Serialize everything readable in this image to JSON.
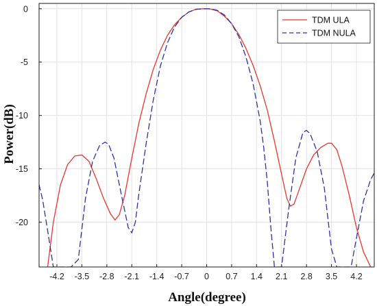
{
  "chart_data": {
    "type": "line",
    "title": "",
    "xlabel": "Angle(degree)",
    "ylabel": "Power(dB)",
    "xlim": [
      -4.7,
      4.7
    ],
    "ylim": [
      -24.2,
      0.5
    ],
    "x_ticks": [
      -4.2,
      -3.5,
      -2.8,
      -2.1,
      -1.4,
      -0.7,
      0,
      0.7,
      1.4,
      2.1,
      2.8,
      3.5,
      4.2
    ],
    "x_tick_labels": [
      "-4.2",
      "-3.5",
      "-2.8",
      "-2.1",
      "-1.4",
      "-0.7",
      "0",
      "0.7",
      "1.4",
      "2.1",
      "2.8",
      "3.5",
      "4.2"
    ],
    "y_ticks": [
      0,
      -5,
      -10,
      -15,
      -20
    ],
    "y_tick_labels": [
      "0",
      "-5",
      "-10",
      "-15",
      "-20"
    ],
    "grid": true,
    "legend_position": "top-right",
    "series": [
      {
        "name": "TDM ULA",
        "color": "#e8352e",
        "style": "solid",
        "x": [
          -4.46,
          -4.3,
          -4.1,
          -3.9,
          -3.7,
          -3.5,
          -3.3,
          -3.1,
          -2.9,
          -2.7,
          -2.57,
          -2.45,
          -2.3,
          -2.1,
          -1.9,
          -1.7,
          -1.5,
          -1.3,
          -1.1,
          -0.9,
          -0.7,
          -0.5,
          -0.3,
          -0.1,
          0.0,
          0.1,
          0.3,
          0.5,
          0.7,
          0.9,
          1.1,
          1.3,
          1.5,
          1.7,
          1.9,
          2.1,
          2.25,
          2.35,
          2.45,
          2.6,
          2.8,
          3.0,
          3.2,
          3.4,
          3.5,
          3.65,
          3.8,
          4.0,
          4.2,
          4.4,
          4.6
        ],
        "y": [
          -24.2,
          -20.0,
          -16.5,
          -14.6,
          -13.8,
          -13.7,
          -14.3,
          -15.9,
          -17.7,
          -19.2,
          -19.8,
          -19.3,
          -17.5,
          -14.0,
          -10.7,
          -8.0,
          -5.7,
          -3.9,
          -2.5,
          -1.5,
          -0.8,
          -0.3,
          -0.05,
          0.0,
          0.0,
          -0.02,
          -0.2,
          -0.7,
          -1.4,
          -2.4,
          -3.7,
          -5.3,
          -7.2,
          -9.5,
          -12.4,
          -15.5,
          -17.8,
          -18.5,
          -18.3,
          -16.9,
          -15.0,
          -13.7,
          -13.0,
          -12.6,
          -12.6,
          -13.2,
          -14.8,
          -17.5,
          -20.5,
          -22.8,
          -24.2
        ]
      },
      {
        "name": "TDM NULA",
        "color": "#2b2fa8",
        "style": "dashed",
        "x": [
          -4.7,
          -4.6,
          -4.45,
          -4.3,
          -4.2,
          -4.1,
          -4.0,
          -3.9,
          -3.8,
          -3.6,
          -3.4,
          -3.2,
          -3.0,
          -2.85,
          -2.75,
          -2.6,
          -2.4,
          -2.2,
          -2.1,
          -2.0,
          -1.9,
          -1.7,
          -1.5,
          -1.3,
          -1.1,
          -0.9,
          -0.7,
          -0.5,
          -0.3,
          -0.1,
          0.1,
          0.3,
          0.5,
          0.7,
          0.9,
          1.1,
          1.3,
          1.5,
          1.6,
          1.7,
          1.8,
          1.9,
          2.0,
          2.1,
          2.3,
          2.5,
          2.7,
          2.8,
          2.9,
          3.1,
          3.3,
          3.5,
          3.65,
          3.8,
          3.95,
          4.05,
          4.2,
          4.4,
          4.6,
          4.7
        ],
        "y": [
          -16.5,
          -17.9,
          -21.0,
          -24.2,
          -24.2,
          -24.2,
          -24.2,
          -24.2,
          -24.2,
          -23.5,
          -17.8,
          -14.3,
          -12.8,
          -12.5,
          -12.7,
          -14.0,
          -17.3,
          -20.5,
          -21.0,
          -20.0,
          -17.3,
          -12.7,
          -8.6,
          -5.4,
          -3.2,
          -1.7,
          -0.8,
          -0.3,
          -0.05,
          0.0,
          0.0,
          -0.15,
          -0.6,
          -1.4,
          -2.6,
          -4.5,
          -7.0,
          -10.5,
          -13.0,
          -16.2,
          -20.5,
          -24.2,
          -24.2,
          -24.2,
          -18.8,
          -14.0,
          -11.6,
          -11.4,
          -11.7,
          -13.4,
          -16.8,
          -22.5,
          -24.2,
          -24.2,
          -24.2,
          -24.2,
          -21.5,
          -18.0,
          -16.0,
          -15.4
        ]
      }
    ]
  }
}
